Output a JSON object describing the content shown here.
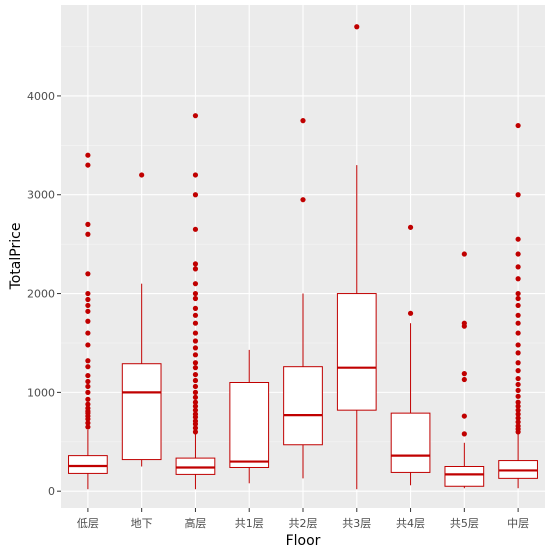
{
  "chart_data": {
    "type": "boxplot",
    "xlabel": "Floor",
    "ylabel": "TotalPrice",
    "ylim": [
      -170,
      4920
    ],
    "yticks": [
      0,
      1000,
      2000,
      3000,
      4000
    ],
    "color": "#C00000",
    "box_fill": "#FFFFFF",
    "grid": true,
    "categories": [
      "低层",
      "地下",
      "高层",
      "共1层",
      "共2层",
      "共3层",
      "共4层",
      "共5层",
      "中层"
    ],
    "boxes": [
      {
        "category": "低层",
        "min": 20,
        "q1": 180,
        "median": 255,
        "q3": 360,
        "max": 620,
        "outliers": [
          650,
          690,
          730,
          760,
          790,
          810,
          840,
          880,
          930,
          1000,
          1060,
          1110,
          1170,
          1260,
          1320,
          1480,
          1600,
          1720,
          1820,
          1880,
          1940,
          2000,
          2200,
          2600,
          2700,
          3300,
          3400
        ]
      },
      {
        "category": "地下",
        "min": 250,
        "q1": 320,
        "median": 1000,
        "q3": 1290,
        "max": 2100,
        "outliers": [
          3200
        ]
      },
      {
        "category": "高层",
        "min": 20,
        "q1": 170,
        "median": 240,
        "q3": 335,
        "max": 580,
        "outliers": [
          600,
          640,
          680,
          710,
          750,
          780,
          820,
          860,
          900,
          950,
          1000,
          1060,
          1120,
          1180,
          1250,
          1300,
          1380,
          1450,
          1520,
          1600,
          1700,
          1780,
          1850,
          1950,
          2000,
          2100,
          2250,
          2300,
          2650,
          3000,
          3200,
          3800
        ]
      },
      {
        "category": "共1层",
        "min": 80,
        "q1": 240,
        "median": 300,
        "q3": 1100,
        "max": 1430,
        "outliers": []
      },
      {
        "category": "共2层",
        "min": 130,
        "q1": 470,
        "median": 770,
        "q3": 1260,
        "max": 2000,
        "outliers": [
          2950,
          3750
        ]
      },
      {
        "category": "共3层",
        "min": 20,
        "q1": 820,
        "median": 1250,
        "q3": 2000,
        "max": 3300,
        "outliers": [
          4700
        ]
      },
      {
        "category": "共4层",
        "min": 60,
        "q1": 190,
        "median": 360,
        "q3": 790,
        "max": 1700,
        "outliers": [
          1800,
          2670
        ]
      },
      {
        "category": "共5层",
        "min": 30,
        "q1": 50,
        "median": 170,
        "q3": 250,
        "max": 490,
        "outliers": [
          580,
          760,
          1130,
          1190,
          1670,
          1700,
          2400
        ]
      },
      {
        "category": "中层",
        "min": 30,
        "q1": 130,
        "median": 210,
        "q3": 310,
        "max": 580,
        "outliers": [
          600,
          630,
          660,
          700,
          740,
          780,
          820,
          860,
          900,
          960,
          1020,
          1080,
          1140,
          1220,
          1300,
          1400,
          1480,
          1600,
          1700,
          1780,
          1880,
          1950,
          2000,
          2150,
          2270,
          2400,
          2550,
          3000,
          3700
        ]
      }
    ]
  }
}
